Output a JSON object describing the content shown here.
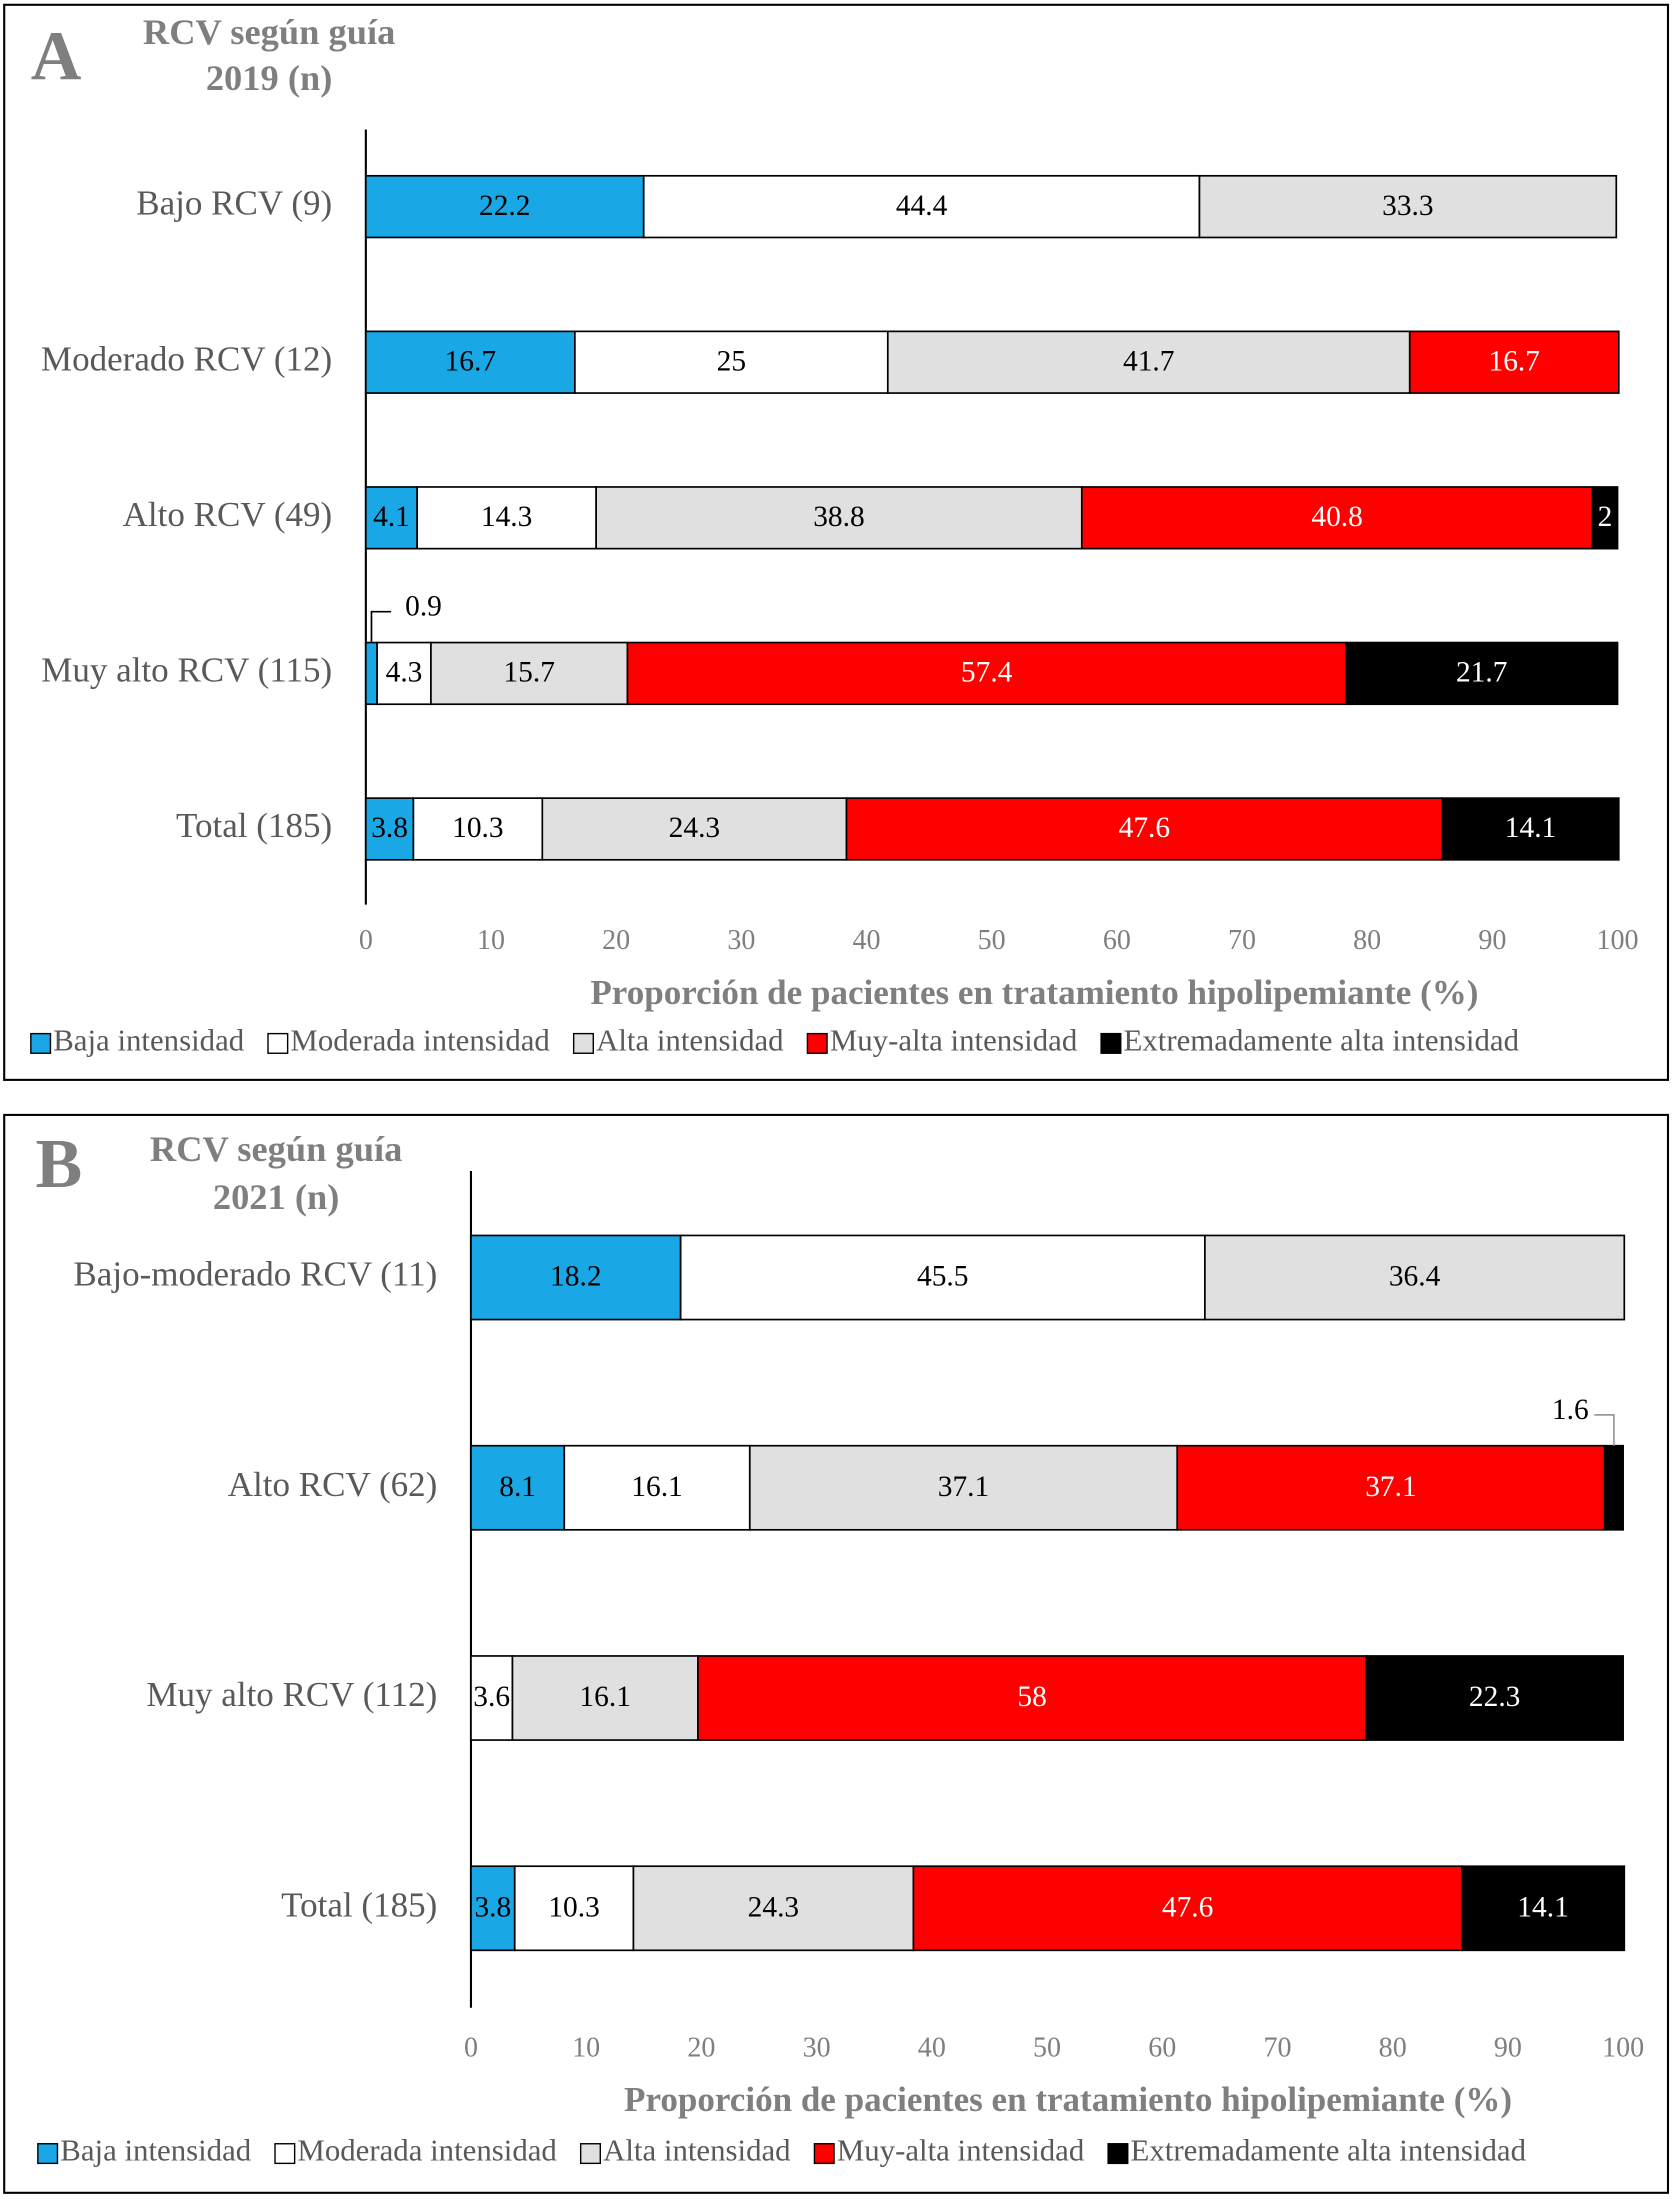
{
  "chart_data": [
    {
      "type": "stacked-barh",
      "panel": "A",
      "title": [
        "RCV según guía",
        "2019 (n)"
      ],
      "xlabel": "Proporción de pacientes en tratamiento hipolipemiante (%)",
      "categories": [
        "Bajo RCV (9)",
        "Moderado RCV (12)",
        "Alto RCV (49)",
        "Muy alto RCV (115)",
        "Total (185)"
      ],
      "series": [
        {
          "name": "Baja intensidad",
          "color": "#1aa7e6",
          "values": [
            22.2,
            16.7,
            4.1,
            0.9,
            3.8
          ]
        },
        {
          "name": "Moderada intensidad",
          "color": "#ffffff",
          "values": [
            44.4,
            25,
            14.3,
            4.3,
            10.3
          ]
        },
        {
          "name": "Alta intensidad",
          "color": "#e0e0e0",
          "values": [
            33.3,
            41.7,
            38.8,
            15.7,
            24.3
          ]
        },
        {
          "name": "Muy-alta intensidad",
          "color": "#ff0000",
          "values": [
            null,
            16.7,
            40.8,
            57.4,
            47.6
          ]
        },
        {
          "name": "Extremadamente alta intensidad",
          "color": "#000000",
          "values": [
            null,
            null,
            2,
            21.7,
            14.1
          ]
        }
      ],
      "xlim": [
        0,
        100
      ],
      "xticks": [
        0,
        10,
        20,
        30,
        40,
        50,
        60,
        70,
        80,
        90,
        100
      ],
      "legend": "bottom"
    },
    {
      "type": "stacked-barh",
      "panel": "B",
      "title": [
        "RCV según guía",
        "2021 (n)"
      ],
      "xlabel": "Proporción de pacientes en tratamiento hipolipemiante (%)",
      "categories": [
        "Bajo-moderado RCV (11)",
        "Alto RCV (62)",
        "Muy alto RCV (112)",
        "Total (185)"
      ],
      "series": [
        {
          "name": "Baja intensidad",
          "color": "#1aa7e6",
          "values": [
            18.2,
            8.1,
            null,
            3.8
          ]
        },
        {
          "name": "Moderada intensidad",
          "color": "#ffffff",
          "values": [
            45.5,
            16.1,
            3.6,
            10.3
          ]
        },
        {
          "name": "Alta intensidad",
          "color": "#e0e0e0",
          "values": [
            36.4,
            37.1,
            16.1,
            24.3
          ]
        },
        {
          "name": "Muy-alta intensidad",
          "color": "#ff0000",
          "values": [
            null,
            37.1,
            58,
            47.6
          ]
        },
        {
          "name": "Extremadamente alta intensidad",
          "color": "#000000",
          "values": [
            null,
            1.6,
            22.3,
            14.1
          ]
        }
      ],
      "xlim": [
        0,
        100
      ],
      "xticks": [
        0,
        10,
        20,
        30,
        40,
        50,
        60,
        70,
        80,
        90,
        100
      ],
      "legend": "bottom"
    }
  ]
}
